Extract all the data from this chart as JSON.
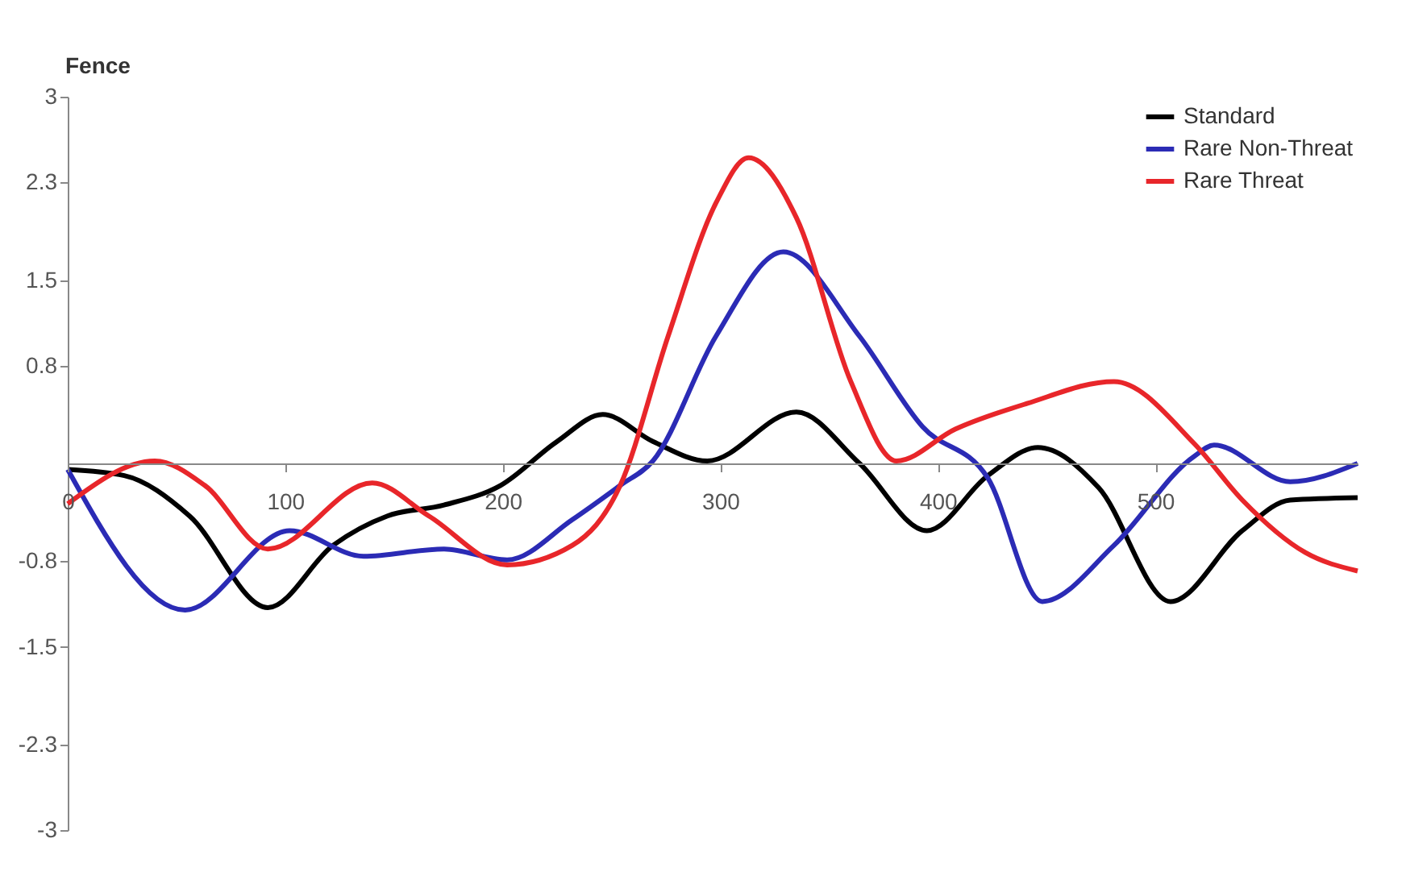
{
  "chart_data": {
    "type": "line",
    "ylabel": "Fence",
    "xlim": [
      0,
      593
    ],
    "ylim": [
      -3,
      3
    ],
    "xticks": [
      0,
      100,
      200,
      300,
      400,
      500
    ],
    "yticks": [
      3,
      2.3,
      1.5,
      0.8,
      -0.8,
      -1.5,
      -2.3,
      -3
    ],
    "grid": false,
    "legend": "top right",
    "marker": "none",
    "line_style": "solid",
    "series": [
      {
        "name": "Standard",
        "color": "#000000",
        "x": [
          0,
          26,
          56,
          92,
          122,
          147,
          173,
          199,
          225,
          246,
          269,
          294,
          335,
          364,
          395,
          423,
          446,
          474,
          507,
          540,
          562,
          593
        ],
        "values": [
          -0.05,
          -0.1,
          -0.43,
          -1.18,
          -0.67,
          -0.43,
          -0.34,
          -0.18,
          0.18,
          0.4,
          0.18,
          0.02,
          0.42,
          0.0,
          -0.55,
          -0.1,
          0.13,
          -0.2,
          -1.13,
          -0.55,
          -0.3,
          -0.28
        ]
      },
      {
        "name": "Rare Non-Threat",
        "color": "#2b2bb5",
        "x": [
          0,
          54,
          102,
          136,
          173,
          202,
          232,
          254,
          269,
          298,
          329,
          364,
          393,
          423,
          448,
          481,
          518,
          527,
          562,
          593
        ],
        "values": [
          -0.05,
          -1.2,
          -0.55,
          -0.76,
          -0.7,
          -0.79,
          -0.46,
          -0.18,
          0.02,
          1.04,
          1.73,
          1.04,
          0.3,
          -0.12,
          -1.13,
          -0.67,
          0.06,
          0.15,
          -0.15,
          0.0
        ]
      },
      {
        "name": "Rare Threat",
        "color": "#e8262a",
        "x": [
          0,
          40,
          63,
          92,
          140,
          166,
          202,
          232,
          254,
          276,
          298,
          313,
          335,
          360,
          381,
          408,
          441,
          481,
          518,
          540,
          569,
          593
        ],
        "values": [
          -0.33,
          0.02,
          -0.18,
          -0.7,
          -0.16,
          -0.43,
          -0.83,
          -0.67,
          -0.18,
          1.04,
          2.13,
          2.5,
          2.01,
          0.67,
          0.02,
          0.28,
          0.49,
          0.67,
          0.16,
          -0.3,
          -0.73,
          -0.88
        ]
      }
    ]
  }
}
